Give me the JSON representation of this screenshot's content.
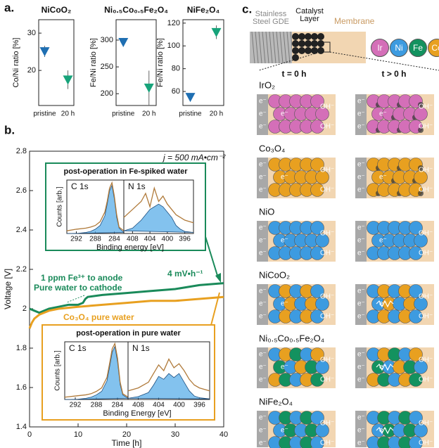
{
  "panel_labels": [
    "a.",
    "b.",
    "c."
  ],
  "chart_data": [
    {
      "type": "scatter",
      "title": "NiCoO₂",
      "ylabel": "Co/Ni ratio [%]",
      "categories": [
        "pristine",
        "20 h"
      ],
      "values": [
        25.1,
        17.5
      ],
      "errors": [
        1.5,
        2.5
      ],
      "colors": [
        "#1f6fb2",
        "#17a37a"
      ],
      "ylim": [
        10.6,
        33.6
      ],
      "yticks": [
        20,
        30
      ]
    },
    {
      "type": "scatter",
      "title": "Ni₀.₅Co₀.₅Fe₂O₄",
      "ylabel": "Fe/Ni ratio [%]",
      "categories": [
        "pristine",
        "20 h"
      ],
      "values": [
        296,
        211
      ],
      "errors": [
        8,
        32
      ],
      "colors": [
        "#1f6fb2",
        "#17a37a"
      ],
      "ylim": [
        178,
        338
      ],
      "yticks": [
        200,
        250,
        300
      ]
    },
    {
      "type": "scatter",
      "title": "NiFe₂O₄",
      "ylabel": "Fe/Ni ratio [%]",
      "categories": [
        "pristine",
        "20 h"
      ],
      "values": [
        55,
        112
      ],
      "errors": [
        3,
        6
      ],
      "colors": [
        "#1f6fb2",
        "#17a37a"
      ],
      "ylim": [
        47.7,
        123
      ],
      "yticks": [
        60,
        80,
        100,
        120
      ]
    },
    {
      "type": "line",
      "xlabel": "Time [h]",
      "ylabel": "Voltage [V]",
      "xlim": [
        0,
        40
      ],
      "xticks": [
        0,
        10,
        20,
        30,
        40
      ],
      "ylim": [
        1.4,
        2.8
      ],
      "yticks": [
        1.4,
        1.6,
        1.8,
        2.0,
        2.2,
        2.4,
        2.6,
        2.8
      ],
      "series": [
        {
          "name": "1 ppm Fe³⁺ to anode",
          "color": "#1a8a5a",
          "x": [
            0,
            1,
            2,
            4,
            6,
            8,
            10,
            11,
            11.5,
            12,
            15,
            20,
            25,
            30,
            35,
            40
          ],
          "values": [
            2.0,
            1.99,
            1.98,
            2.0,
            2.01,
            2.02,
            2.02,
            2.03,
            2.05,
            2.06,
            2.07,
            2.08,
            2.09,
            2.1,
            2.12,
            2.13
          ]
        },
        {
          "name": "Co₃O₄ pure water",
          "color": "#e8a020",
          "x": [
            0,
            0.5,
            1,
            2,
            4,
            6,
            10,
            15,
            20,
            25,
            30,
            35,
            40
          ],
          "values": [
            1.9,
            1.93,
            1.95,
            1.97,
            1.99,
            2.0,
            2.01,
            2.02,
            2.03,
            2.04,
            2.04,
            2.05,
            2.06
          ]
        }
      ],
      "annotations": [
        "j = 500 mA•cm⁻²",
        "Pure water to cathode",
        "4 mV•h⁻¹"
      ]
    },
    {
      "type": "xps",
      "title": "post-operation in Fe-spiked water",
      "ylabel": "Counts [arb.]",
      "xlabel": "Binding energy [eV]",
      "frame_color": "#1a8a5a",
      "ylim": [
        0,
        1
      ],
      "panels": [
        {
          "title": "C 1s",
          "xlim": [
            294,
            282
          ],
          "xticks": [
            292,
            288,
            284
          ],
          "x": [
            294,
            292,
            290,
            289,
            288,
            287,
            286,
            285.5,
            285,
            284.5,
            284,
            283.5,
            283,
            282
          ],
          "values": [
            0.05,
            0.08,
            0.1,
            0.12,
            0.15,
            0.22,
            0.4,
            0.6,
            0.85,
            0.95,
            0.7,
            0.35,
            0.12,
            0.05
          ],
          "component": [
            0,
            0,
            0.02,
            0.04,
            0.08,
            0.15,
            0.33,
            0.55,
            0.8,
            0.9,
            0.65,
            0.3,
            0.1,
            0.02
          ]
        },
        {
          "title": "N 1s",
          "xlim": [
            410,
            394
          ],
          "xticks": [
            408,
            404,
            400,
            396
          ],
          "x": [
            410,
            408,
            406,
            405,
            404,
            403,
            402,
            401,
            400,
            399,
            398,
            397,
            396,
            394
          ],
          "values": [
            0.3,
            0.45,
            0.6,
            0.75,
            0.5,
            0.85,
            0.6,
            0.7,
            0.55,
            0.45,
            0.35,
            0.3,
            0.25,
            0.2
          ],
          "component": [
            0.05,
            0.1,
            0.25,
            0.35,
            0.45,
            0.5,
            0.55,
            0.5,
            0.4,
            0.3,
            0.15,
            0.08,
            0.04,
            0.02
          ]
        }
      ],
      "envelope_color": "#b07a3a",
      "component_color": "#5aaee8"
    },
    {
      "type": "xps",
      "title": "post-operation in pure water",
      "ylabel": "Counts [arb.]",
      "xlabel": "Binding Energy [eV]",
      "frame_color": "#e8a020",
      "ylim": [
        0,
        1
      ],
      "panels": [
        {
          "title": "C 1s",
          "xlim": [
            294,
            282
          ],
          "xticks": [
            292,
            288,
            284
          ],
          "x": [
            294,
            292,
            290,
            289,
            288,
            287,
            286,
            285.5,
            285,
            284.5,
            284,
            283.5,
            283,
            282
          ],
          "values": [
            0.04,
            0.06,
            0.08,
            0.1,
            0.14,
            0.2,
            0.38,
            0.62,
            0.88,
            0.97,
            0.72,
            0.3,
            0.1,
            0.04
          ],
          "component": [
            0,
            0,
            0.02,
            0.04,
            0.08,
            0.14,
            0.32,
            0.56,
            0.82,
            0.92,
            0.66,
            0.26,
            0.08,
            0.02
          ]
        },
        {
          "title": "N 1s",
          "xlim": [
            410,
            394
          ],
          "xticks": [
            408,
            404,
            400,
            396
          ],
          "x": [
            410,
            408,
            406,
            405,
            404,
            403,
            402,
            401,
            400,
            399,
            398,
            397,
            396,
            394
          ],
          "values": [
            0.15,
            0.2,
            0.3,
            0.45,
            0.6,
            0.5,
            0.7,
            0.55,
            0.62,
            0.5,
            0.35,
            0.25,
            0.2,
            0.15
          ],
          "component": [
            0.02,
            0.05,
            0.12,
            0.25,
            0.4,
            0.35,
            0.45,
            0.38,
            0.45,
            0.3,
            0.15,
            0.06,
            0.03,
            0.01
          ]
        }
      ],
      "envelope_color": "#b07a3a",
      "component_color": "#5aaee8"
    }
  ],
  "diagram": {
    "substrate": [
      "Stainless",
      "Steel GDE"
    ],
    "catalyst": [
      "Catalyst",
      "Layer"
    ],
    "membrane": "Membrane",
    "elements": [
      {
        "label": "Ir",
        "color": "#d46fb8"
      },
      {
        "label": "Ni",
        "color": "#3d9be0"
      },
      {
        "label": "Fe",
        "color": "#13925f"
      },
      {
        "label": "Co",
        "color": "#e8a020"
      }
    ],
    "columns": [
      "t = 0 h",
      "t > 0 h"
    ],
    "rows": [
      {
        "label": "IrO₂",
        "colors": [
          "#d46fb8"
        ]
      },
      {
        "label": "Co₃O₄",
        "colors": [
          "#e8a020"
        ]
      },
      {
        "label": "NiO",
        "colors": [
          "#3d9be0"
        ]
      },
      {
        "label": "NiCoO₂",
        "colors": [
          "#3d9be0",
          "#e8a020"
        ]
      },
      {
        "label": "Ni₀.₅Co₀.₅Fe₂O₄",
        "colors": [
          "#3d9be0",
          "#e8a020",
          "#13925f"
        ]
      },
      {
        "label": "NiFe₂O₄",
        "colors": [
          "#3d9be0",
          "#13925f"
        ]
      }
    ],
    "electron": "e⁻",
    "hydroxide": "OH⁻"
  }
}
